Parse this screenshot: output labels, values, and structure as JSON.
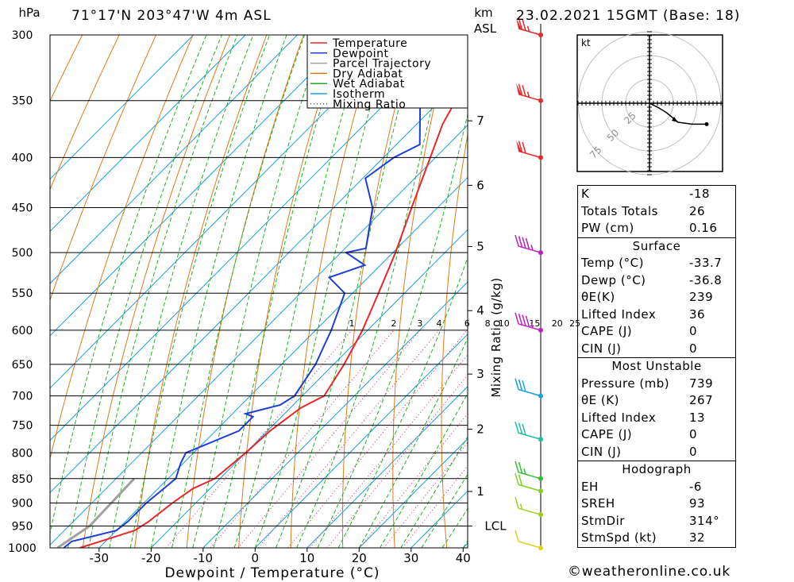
{
  "header": {
    "location": "71°17'N 203°47'W 4m ASL",
    "datetime": "23.02.2021 15GMT (Base: 18)",
    "left_unit": "hPa",
    "km_unit": "km",
    "asl_unit": "ASL"
  },
  "footer": "©weatheronline.co.uk",
  "chart_data": {
    "type": "skew-t",
    "xlabel": "Dewpoint / Temperature (°C)",
    "ylabel_left": "hPa",
    "ylabel_right": "Mixing Ratio (g/kg)",
    "x_ticks": [
      "-30",
      "-20",
      "-10",
      "0",
      "10",
      "20",
      "30",
      "40"
    ],
    "x_tick_values": [
      -30,
      -20,
      -10,
      0,
      10,
      20,
      30,
      40
    ],
    "pressure_levels": [
      300,
      350,
      400,
      450,
      500,
      550,
      600,
      650,
      700,
      750,
      800,
      850,
      900,
      950,
      1000
    ],
    "pressure_labels": [
      "300",
      "350",
      "400",
      "450",
      "500",
      "550",
      "600",
      "650",
      "700",
      "750",
      "800",
      "850",
      "900",
      "950",
      "1000"
    ],
    "km_ticks": [
      {
        "label": "7",
        "p": 367
      },
      {
        "label": "6",
        "p": 427
      },
      {
        "label": "5",
        "p": 493
      },
      {
        "label": "4",
        "p": 573
      },
      {
        "label": "3",
        "p": 665
      },
      {
        "label": "2",
        "p": 757
      },
      {
        "label": "1",
        "p": 876
      },
      {
        "label": "LCL",
        "p": 950
      }
    ],
    "mixing_ratio_labels": [
      "1",
      "2",
      "3",
      "4",
      "6",
      "8",
      "10",
      "15",
      "20",
      "25"
    ],
    "legend": [
      {
        "name": "Temperature",
        "color": "#e8282b",
        "style": "solid"
      },
      {
        "name": "Dewpoint",
        "color": "#1f3fd4",
        "style": "solid"
      },
      {
        "name": "Parcel Trajectory",
        "color": "#a0a0a0",
        "style": "solid"
      },
      {
        "name": "Dry Adiabat",
        "color": "#e07a1a",
        "style": "solid"
      },
      {
        "name": "Wet Adiabat",
        "color": "#22b022",
        "style": "solid"
      },
      {
        "name": "Isotherm",
        "color": "#1aa0e0",
        "style": "solid"
      },
      {
        "name": "Mixing Ratio",
        "color": "#d0208a",
        "style": "dotted"
      }
    ],
    "series": [
      {
        "name": "Temperature",
        "points": [
          [
            1000,
            -33.7
          ],
          [
            985,
            -31
          ],
          [
            960,
            -26.5
          ],
          [
            940,
            -25.5
          ],
          [
            900,
            -24.5
          ],
          [
            870,
            -23.3
          ],
          [
            850,
            -21
          ],
          [
            800,
            -20
          ],
          [
            760,
            -19.5
          ],
          [
            720,
            -18
          ],
          [
            700,
            -15.8
          ],
          [
            650,
            -18
          ],
          [
            600,
            -21
          ],
          [
            550,
            -25
          ],
          [
            500,
            -29.5
          ],
          [
            450,
            -35
          ],
          [
            400,
            -41
          ],
          [
            370,
            -45
          ],
          [
            350,
            -47
          ],
          [
            320,
            -51
          ],
          [
            305,
            -52
          ],
          [
            300,
            -52
          ]
        ]
      },
      {
        "name": "Dewpoint",
        "points": [
          [
            1000,
            -36.8
          ],
          [
            985,
            -36.5
          ],
          [
            960,
            -30
          ],
          [
            940,
            -29.5
          ],
          [
            900,
            -29.5
          ],
          [
            850,
            -28.5
          ],
          [
            820,
            -30.5
          ],
          [
            800,
            -31.5
          ],
          [
            760,
            -25.5
          ],
          [
            735,
            -25.5
          ],
          [
            730,
            -27.5
          ],
          [
            715,
            -22.5
          ],
          [
            700,
            -21.5
          ],
          [
            650,
            -23.5
          ],
          [
            600,
            -27
          ],
          [
            550,
            -31.5
          ],
          [
            530,
            -37.5
          ],
          [
            515,
            -33
          ],
          [
            500,
            -39
          ],
          [
            495,
            -36
          ],
          [
            450,
            -42.5
          ],
          [
            420,
            -49.5
          ],
          [
            400,
            -48
          ],
          [
            388,
            -45.5
          ],
          [
            345,
            -55
          ],
          [
            338,
            -54
          ],
          [
            320,
            -52.5
          ],
          [
            305,
            -55
          ],
          [
            300,
            -55
          ]
        ]
      }
    ],
    "wind_barbs": [
      {
        "p": 300,
        "color": "#e8282b",
        "speed_kt": 75
      },
      {
        "p": 350,
        "color": "#e8282b",
        "speed_kt": 75
      },
      {
        "p": 400,
        "color": "#e8282b",
        "speed_kt": 70
      },
      {
        "p": 500,
        "color": "#c020c0",
        "speed_kt": 45
      },
      {
        "p": 600,
        "color": "#c020c0",
        "speed_kt": 45
      },
      {
        "p": 700,
        "color": "#1aa0e0",
        "speed_kt": 30
      },
      {
        "p": 775,
        "color": "#20c0a0",
        "speed_kt": 30
      },
      {
        "p": 850,
        "color": "#30c030",
        "speed_kt": 25
      },
      {
        "p": 875,
        "color": "#80d020",
        "speed_kt": 20
      },
      {
        "p": 925,
        "color": "#a0d020",
        "speed_kt": 15
      },
      {
        "p": 1000,
        "color": "#e0d020",
        "speed_kt": 10
      }
    ],
    "hodograph": {
      "unit": "kt",
      "ring_labels": [
        "25",
        "50",
        "75"
      ],
      "points": [
        [
          0,
          0
        ],
        [
          10,
          -5
        ],
        [
          18,
          -10
        ],
        [
          30,
          -20
        ],
        [
          45,
          -22
        ],
        [
          60,
          -22
        ]
      ]
    }
  },
  "indices": {
    "k_label": "K",
    "k_value": "-18",
    "tt_label": "Totals Totals",
    "tt_value": "26",
    "pw_label": "PW (cm)",
    "pw_value": "0.16"
  },
  "surface": {
    "title": "Surface",
    "temp_label": "Temp (°C)",
    "temp_value": "-33.7",
    "dewp_label": "Dewp (°C)",
    "dewp_value": "-36.8",
    "theta_label": "θE(K)",
    "theta_value": "239",
    "li_label": "Lifted Index",
    "li_value": "36",
    "cape_label": "CAPE (J)",
    "cape_value": "0",
    "cin_label": "CIN (J)",
    "cin_value": "0"
  },
  "most_unstable": {
    "title": "Most Unstable",
    "pressure_label": "Pressure (mb)",
    "pressure_value": "739",
    "theta_label": "θE (K)",
    "theta_value": "267",
    "li_label": "Lifted Index",
    "li_value": "13",
    "cape_label": "CAPE (J)",
    "cape_value": "0",
    "cin_label": "CIN (J)",
    "cin_value": "0"
  },
  "hodograph_table": {
    "title": "Hodograph",
    "eh_label": "EH",
    "eh_value": "-6",
    "sreh_label": "SREH",
    "sreh_value": "93",
    "stmdir_label": "StmDir",
    "stmdir_value": "314°",
    "stmspd_label": "StmSpd (kt)",
    "stmspd_value": "32"
  }
}
